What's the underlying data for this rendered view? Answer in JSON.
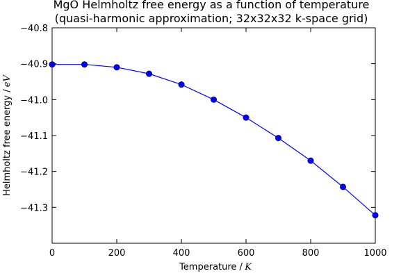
{
  "chart_data": {
    "type": "line",
    "title_line1": "MgO Helmholtz free energy as a function of temperature",
    "title_line2": "(quasi-harmonic approximation; 32x32x32 k-space grid)",
    "xlabel_text": "Temperature /",
    "xlabel_unit": "K",
    "ylabel_text": "Helmholtz free energy /",
    "ylabel_unit": "eV",
    "xlim": [
      0,
      1000
    ],
    "ylim": [
      -41.4,
      -40.8
    ],
    "xticks": [
      0,
      200,
      400,
      600,
      800,
      1000
    ],
    "xtick_labels": [
      "0",
      "200",
      "400",
      "600",
      "800",
      "1000"
    ],
    "yticks": [
      -41.3,
      -41.2,
      -41.1,
      -41.0,
      -40.9,
      -40.8
    ],
    "ytick_labels": [
      "−41.3",
      "−41.2",
      "−41.1",
      "−41.0",
      "−40.9",
      "−40.8"
    ],
    "grid": false,
    "series": [
      {
        "color": "#0000ff",
        "marker": "circle",
        "x": [
          0,
          100,
          200,
          300,
          400,
          500,
          600,
          700,
          800,
          900,
          1000
        ],
        "y": [
          -40.902,
          -40.902,
          -40.91,
          -40.928,
          -40.958,
          -41.0,
          -41.05,
          -41.107,
          -41.17,
          -41.243,
          -41.322
        ]
      }
    ]
  }
}
